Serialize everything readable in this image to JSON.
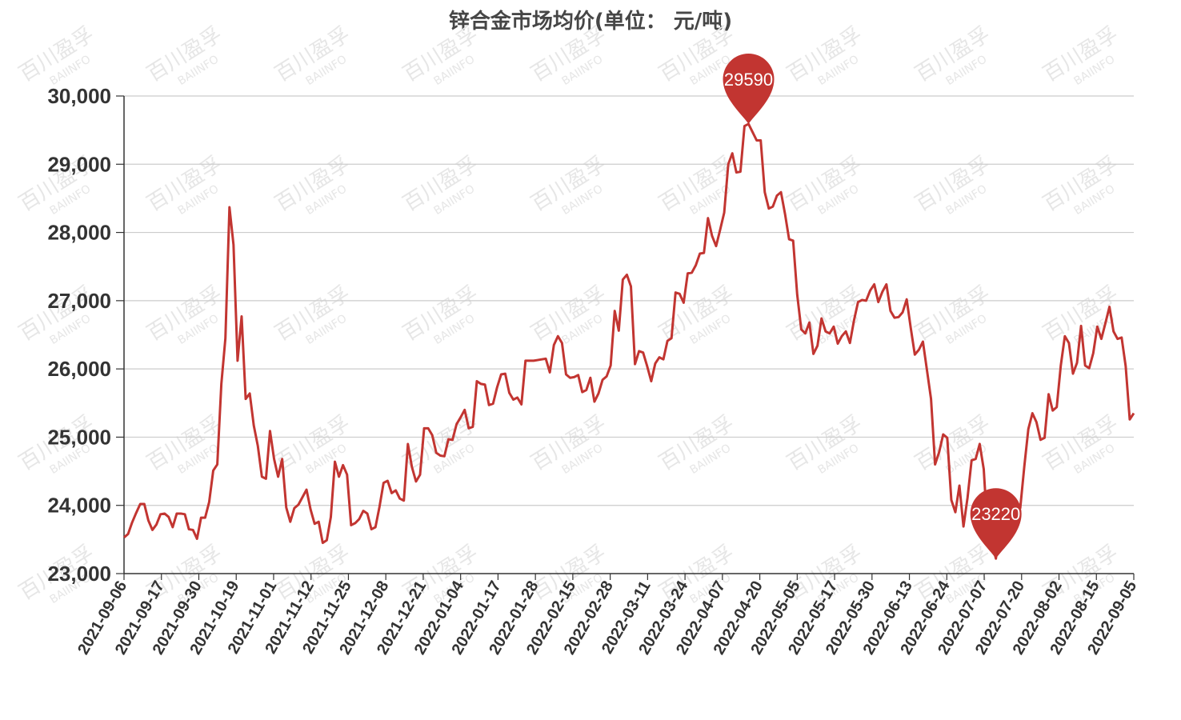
{
  "chart_data": {
    "type": "line",
    "title": "锌合金市场均价(单位：  元/吨)",
    "xlabel": "",
    "ylabel": "",
    "ylim": [
      23000,
      30000
    ],
    "yticks": [
      23000,
      24000,
      25000,
      26000,
      27000,
      28000,
      29000,
      30000
    ],
    "ytick_labels": [
      "23,000",
      "24,000",
      "25,000",
      "26,000",
      "27,000",
      "28,000",
      "29,000",
      "30,000"
    ],
    "x_tick_labels": [
      "2021-09-06",
      "2021-09-17",
      "2021-09-30",
      "2021-10-19",
      "2021-11-01",
      "2021-11-12",
      "2021-11-25",
      "2021-12-08",
      "2021-12-21",
      "2022-01-04",
      "2022-01-17",
      "2022-01-28",
      "2022-02-15",
      "2022-02-28",
      "2022-03-11",
      "2022-03-24",
      "2022-04-07",
      "2022-04-20",
      "2022-05-05",
      "2022-05-17",
      "2022-05-30",
      "2022-06-13",
      "2022-06-24",
      "2022-07-07",
      "2022-07-20",
      "2022-08-02",
      "2022-08-15",
      "2022-09-05"
    ],
    "grid": true,
    "series": [
      {
        "color": "#c23531",
        "values": [
          23530,
          23580,
          23750,
          23890,
          24020,
          24020,
          23780,
          23640,
          23720,
          23870,
          23880,
          23830,
          23680,
          23880,
          23880,
          23870,
          23650,
          23640,
          23510,
          23820,
          23820,
          24050,
          24510,
          24600,
          25780,
          26450,
          28370,
          27820,
          26120,
          26770,
          25560,
          25640,
          25170,
          24870,
          24420,
          24390,
          25090,
          24680,
          24420,
          24680,
          23970,
          23760,
          23960,
          24010,
          24120,
          24230,
          23940,
          23730,
          23760,
          23450,
          23490,
          23830,
          24640,
          24420,
          24590,
          24450,
          23710,
          23740,
          23800,
          23920,
          23880,
          23650,
          23680,
          23980,
          24330,
          24360,
          24180,
          24220,
          24100,
          24070,
          24900,
          24560,
          24350,
          24450,
          25130,
          25130,
          25030,
          24770,
          24730,
          24720,
          24970,
          24960,
          25190,
          25290,
          25400,
          25130,
          25150,
          25820,
          25780,
          25770,
          25470,
          25490,
          25730,
          25920,
          25930,
          25650,
          25550,
          25580,
          25480,
          26120,
          26120,
          26120,
          26130,
          26140,
          26150,
          25950,
          26350,
          26480,
          26380,
          25920,
          25870,
          25880,
          25910,
          25660,
          25690,
          25870,
          25520,
          25640,
          25840,
          25890,
          26050,
          26850,
          26560,
          27310,
          27380,
          27210,
          26070,
          26260,
          26240,
          26040,
          25820,
          26080,
          26170,
          26140,
          26410,
          26450,
          27120,
          27100,
          26970,
          27400,
          27410,
          27520,
          27690,
          27700,
          28210,
          27950,
          27800,
          28040,
          28290,
          29000,
          29160,
          28880,
          28890,
          29560,
          29590,
          29470,
          29350,
          29350,
          28590,
          28350,
          28380,
          28540,
          28590,
          28270,
          27900,
          27880,
          27090,
          26580,
          26520,
          26680,
          26220,
          26340,
          26740,
          26550,
          26520,
          26620,
          26370,
          26480,
          26550,
          26380,
          26710,
          26980,
          27010,
          27000,
          27150,
          27240,
          26980,
          27130,
          27240,
          26850,
          26750,
          26760,
          26830,
          27020,
          26600,
          26210,
          26280,
          26400,
          25980,
          25560,
          24600,
          24780,
          25040,
          24990,
          24080,
          23900,
          24290,
          23690,
          24110,
          24660,
          24680,
          24900,
          24530,
          23550,
          23450,
          23220,
          23720,
          23900,
          23920,
          24000,
          24060,
          23960,
          24570,
          25120,
          25350,
          25220,
          24960,
          24990,
          25630,
          25390,
          25440,
          26050,
          26480,
          26380,
          25930,
          26090,
          26630,
          26050,
          26010,
          26230,
          26620,
          26440,
          26670,
          26910,
          26550,
          26440,
          26460,
          26040,
          25260,
          25350
        ]
      }
    ],
    "markers": [
      {
        "type": "max",
        "value": 29590,
        "label": "29590"
      },
      {
        "type": "min",
        "value": 23220,
        "label": "23220"
      }
    ],
    "watermark": {
      "text_top": "百川盈孚",
      "text_bottom": "BAIINFO"
    }
  }
}
